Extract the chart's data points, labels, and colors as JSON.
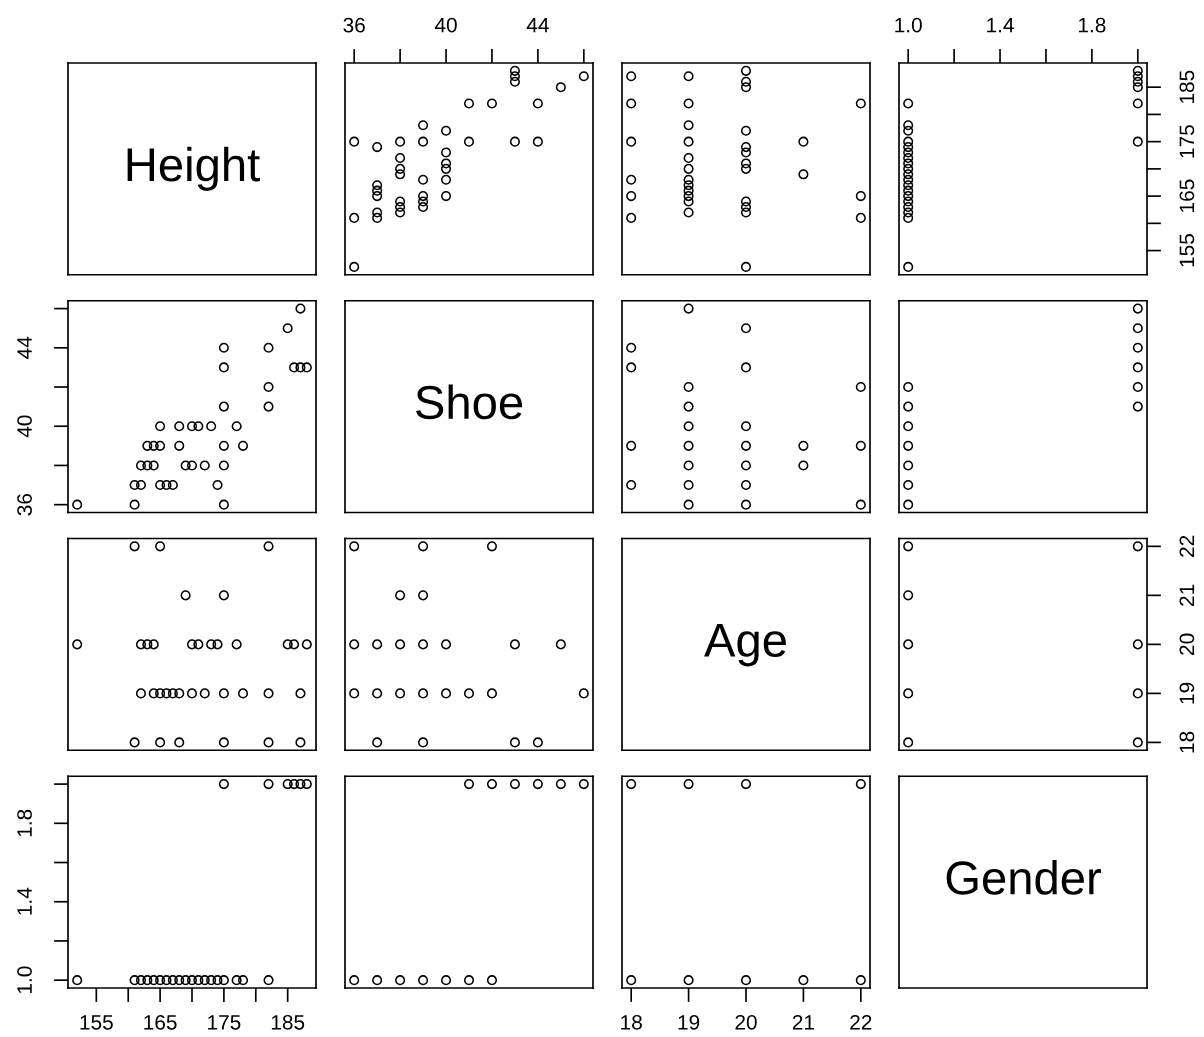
{
  "chart_data": [
    {
      "type": "other",
      "title": "Height"
    },
    {
      "type": "scatter",
      "x": [
        36,
        36,
        36,
        37,
        37,
        37,
        37,
        37,
        37,
        38,
        38,
        38,
        38,
        38,
        38,
        38,
        39,
        39,
        39,
        39,
        39,
        39,
        40,
        40,
        40,
        40,
        40,
        40,
        41,
        41,
        42,
        43,
        43,
        43,
        43,
        44,
        44,
        45,
        46
      ],
      "values": [
        152,
        161,
        175,
        161,
        162,
        165,
        166,
        167,
        174,
        162,
        163,
        164,
        169,
        170,
        172,
        175,
        163,
        164,
        165,
        168,
        175,
        178,
        165,
        168,
        170,
        171,
        173,
        177,
        175,
        182,
        182,
        175,
        186,
        187,
        188,
        175,
        182,
        185,
        187
      ],
      "color": "#000000",
      "marker": "circle",
      "xlim": [
        35.6,
        46.4
      ],
      "ylim": [
        150.56,
        189.44
      ],
      "xticks": [
        36,
        {
          "value": 38,
          "label": null
        },
        40,
        {
          "value": 42,
          "label": null
        },
        44,
        {
          "value": 46,
          "label": null
        }
      ],
      "tick_labels": "x"
    },
    {
      "type": "scatter",
      "x": [
        18,
        18,
        18,
        18,
        18,
        18,
        19,
        19,
        19,
        19,
        19,
        19,
        19,
        19,
        19,
        19,
        19,
        19,
        20,
        20,
        20,
        20,
        20,
        20,
        20,
        20,
        20,
        20,
        20,
        20,
        21,
        21,
        22,
        22,
        22
      ],
      "values": [
        161,
        165,
        168,
        175,
        182,
        187,
        162,
        164,
        165,
        166,
        167,
        168,
        170,
        172,
        175,
        178,
        182,
        187,
        152,
        162,
        163,
        164,
        170,
        171,
        173,
        174,
        177,
        185,
        186,
        188,
        169,
        175,
        161,
        165,
        182
      ],
      "color": "#000000",
      "marker": "circle",
      "xlim": [
        17.84,
        22.16
      ],
      "ylim": [
        150.56,
        189.44
      ],
      "tick_labels": false
    },
    {
      "type": "scatter",
      "x": [
        1,
        1,
        1,
        1,
        1,
        1,
        1,
        1,
        1,
        1,
        1,
        1,
        1,
        1,
        1,
        1,
        1,
        1,
        1,
        2,
        2,
        2,
        2,
        2,
        2
      ],
      "values": [
        152,
        161,
        162,
        163,
        164,
        165,
        166,
        167,
        168,
        169,
        170,
        171,
        172,
        173,
        174,
        175,
        177,
        178,
        182,
        175,
        182,
        185,
        186,
        187,
        188
      ],
      "color": "#000000",
      "marker": "circle",
      "xlim": [
        0.96,
        2.04
      ],
      "ylim": [
        150.56,
        189.44
      ],
      "xticks": [
        {
          "value": 1,
          "label": "1.0"
        },
        {
          "value": 1.2,
          "label": null
        },
        {
          "value": 1.4,
          "label": "1.4"
        },
        {
          "value": 1.6,
          "label": null
        },
        {
          "value": 1.8,
          "label": "1.8"
        },
        {
          "value": 2,
          "label": null
        }
      ],
      "yticks": [
        155,
        {
          "value": 160,
          "label": null
        },
        165,
        {
          "value": 170,
          "label": null
        },
        175,
        {
          "value": 180,
          "label": null
        },
        185
      ]
    },
    {
      "type": "scatter",
      "x": [
        152,
        161,
        175,
        161,
        162,
        165,
        166,
        167,
        174,
        162,
        163,
        164,
        169,
        170,
        172,
        175,
        163,
        164,
        165,
        168,
        175,
        178,
        165,
        168,
        170,
        171,
        173,
        177,
        175,
        182,
        182,
        175,
        186,
        187,
        188,
        175,
        182,
        185,
        187
      ],
      "values": [
        36,
        36,
        36,
        37,
        37,
        37,
        37,
        37,
        37,
        38,
        38,
        38,
        38,
        38,
        38,
        38,
        39,
        39,
        39,
        39,
        39,
        39,
        40,
        40,
        40,
        40,
        40,
        40,
        41,
        41,
        42,
        43,
        43,
        43,
        43,
        44,
        44,
        45,
        46
      ],
      "color": "#000000",
      "marker": "circle",
      "xlim": [
        150.56,
        189.44
      ],
      "ylim": [
        35.6,
        46.4
      ],
      "yticks": [
        36,
        {
          "value": 38,
          "label": null
        },
        40,
        {
          "value": 42,
          "label": null
        },
        44,
        {
          "value": 46,
          "label": null
        }
      ],
      "tick_labels": "y"
    },
    {
      "type": "other",
      "title": "Shoe"
    },
    {
      "type": "scatter",
      "x": [
        18,
        18,
        18,
        18,
        19,
        19,
        19,
        19,
        19,
        19,
        19,
        19,
        20,
        20,
        20,
        20,
        20,
        20,
        20,
        21,
        21,
        22,
        22,
        22
      ],
      "values": [
        37,
        39,
        43,
        44,
        36,
        37,
        38,
        39,
        40,
        41,
        42,
        46,
        36,
        37,
        38,
        39,
        40,
        43,
        45,
        38,
        39,
        36,
        39,
        42
      ],
      "color": "#000000",
      "marker": "circle",
      "xlim": [
        17.84,
        22.16
      ],
      "ylim": [
        35.6,
        46.4
      ],
      "tick_labels": false
    },
    {
      "type": "scatter",
      "x": [
        1,
        1,
        1,
        1,
        1,
        1,
        1,
        2,
        2,
        2,
        2,
        2,
        2
      ],
      "values": [
        36,
        37,
        38,
        39,
        40,
        41,
        42,
        41,
        42,
        43,
        44,
        45,
        46
      ],
      "color": "#000000",
      "marker": "circle",
      "xlim": [
        0.96,
        2.04
      ],
      "ylim": [
        35.6,
        46.4
      ],
      "tick_labels": false
    },
    {
      "type": "scatter",
      "x": [
        161,
        165,
        168,
        175,
        182,
        187,
        162,
        164,
        165,
        166,
        167,
        168,
        170,
        172,
        175,
        178,
        182,
        187,
        152,
        162,
        163,
        164,
        170,
        171,
        173,
        174,
        177,
        185,
        186,
        188,
        169,
        175,
        161,
        165,
        182
      ],
      "values": [
        18,
        18,
        18,
        18,
        18,
        18,
        19,
        19,
        19,
        19,
        19,
        19,
        19,
        19,
        19,
        19,
        19,
        19,
        20,
        20,
        20,
        20,
        20,
        20,
        20,
        20,
        20,
        20,
        20,
        20,
        21,
        21,
        22,
        22,
        22
      ],
      "color": "#000000",
      "marker": "circle",
      "xlim": [
        150.56,
        189.44
      ],
      "ylim": [
        17.84,
        22.16
      ],
      "tick_labels": false
    },
    {
      "type": "scatter",
      "x": [
        37,
        39,
        43,
        44,
        36,
        37,
        38,
        39,
        40,
        41,
        42,
        46,
        36,
        37,
        38,
        39,
        40,
        43,
        45,
        38,
        39,
        36,
        39,
        42
      ],
      "values": [
        18,
        18,
        18,
        18,
        19,
        19,
        19,
        19,
        19,
        19,
        19,
        19,
        20,
        20,
        20,
        20,
        20,
        20,
        20,
        21,
        21,
        22,
        22,
        22
      ],
      "color": "#000000",
      "marker": "circle",
      "xlim": [
        35.6,
        46.4
      ],
      "ylim": [
        17.84,
        22.16
      ],
      "tick_labels": false
    },
    {
      "type": "other",
      "title": "Age"
    },
    {
      "type": "scatter",
      "x": [
        1,
        1,
        1,
        1,
        1,
        2,
        2,
        2,
        2
      ],
      "values": [
        18,
        19,
        20,
        21,
        22,
        18,
        19,
        20,
        22
      ],
      "color": "#000000",
      "marker": "circle",
      "xlim": [
        0.96,
        2.04
      ],
      "ylim": [
        17.84,
        22.16
      ],
      "yticks": [
        18,
        19,
        20,
        21,
        22
      ],
      "tick_labels": "y"
    },
    {
      "type": "scatter",
      "x": [
        152,
        161,
        162,
        163,
        164,
        165,
        166,
        167,
        168,
        169,
        170,
        171,
        172,
        173,
        174,
        175,
        177,
        178,
        182,
        175,
        182,
        185,
        186,
        187,
        188
      ],
      "values": [
        1,
        1,
        1,
        1,
        1,
        1,
        1,
        1,
        1,
        1,
        1,
        1,
        1,
        1,
        1,
        1,
        1,
        1,
        1,
        2,
        2,
        2,
        2,
        2,
        2
      ],
      "color": "#000000",
      "marker": "circle",
      "xlim": [
        150.56,
        189.44
      ],
      "ylim": [
        0.96,
        2.04
      ],
      "xticks": [
        155,
        {
          "value": 160,
          "label": null
        },
        165,
        {
          "value": 170,
          "label": null
        },
        175,
        {
          "value": 180,
          "label": null
        },
        185
      ],
      "yticks": [
        {
          "value": 1,
          "label": "1.0"
        },
        {
          "value": 1.2,
          "label": null
        },
        {
          "value": 1.4,
          "label": "1.4"
        },
        {
          "value": 1.6,
          "label": null
        },
        {
          "value": 1.8,
          "label": "1.8"
        },
        {
          "value": 2,
          "label": null
        }
      ]
    },
    {
      "type": "scatter",
      "x": [
        36,
        37,
        38,
        39,
        40,
        41,
        42,
        41,
        42,
        43,
        44,
        45,
        46
      ],
      "values": [
        1,
        1,
        1,
        1,
        1,
        1,
        1,
        2,
        2,
        2,
        2,
        2,
        2
      ],
      "color": "#000000",
      "marker": "circle",
      "xlim": [
        35.6,
        46.4
      ],
      "ylim": [
        0.96,
        2.04
      ],
      "tick_labels": false
    },
    {
      "type": "scatter",
      "x": [
        18,
        19,
        20,
        21,
        22,
        18,
        19,
        20,
        22
      ],
      "values": [
        1,
        1,
        1,
        1,
        1,
        2,
        2,
        2,
        2
      ],
      "color": "#000000",
      "marker": "circle",
      "xlim": [
        17.84,
        22.16
      ],
      "ylim": [
        0.96,
        2.04
      ],
      "xticks": [
        18,
        19,
        20,
        21,
        22
      ],
      "tick_labels": "x"
    },
    {
      "type": "other",
      "title": "Gender"
    }
  ]
}
